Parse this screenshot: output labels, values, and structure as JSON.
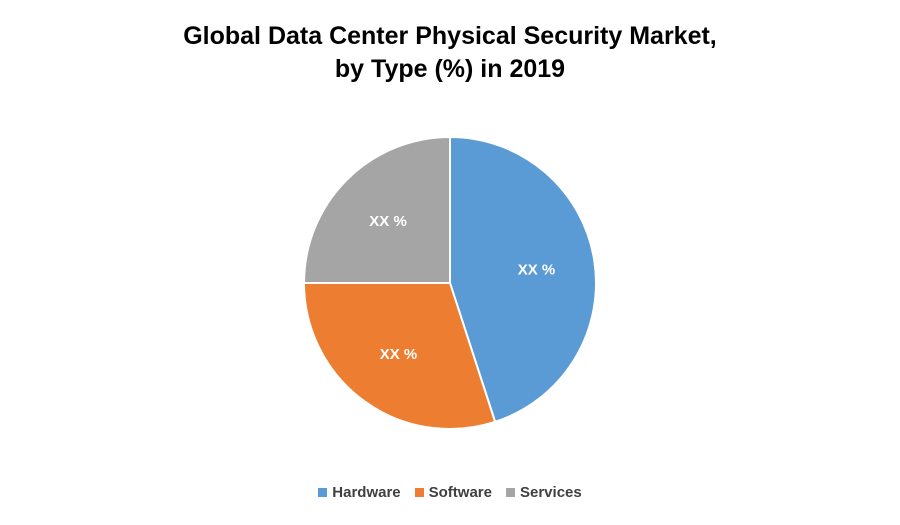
{
  "chart_data": {
    "type": "pie",
    "title_line1": "Global Data Center Physical Security Market,",
    "title_line2": "by Type (%) in 2019",
    "categories": [
      "Hardware",
      "Software",
      "Services"
    ],
    "values": [
      45,
      30,
      25
    ],
    "data_labels": [
      "XX %",
      "XX %",
      "XX %"
    ],
    "colors": [
      "#5B9BD5",
      "#ED7D31",
      "#A5A5A5"
    ],
    "legend_position": "bottom"
  }
}
